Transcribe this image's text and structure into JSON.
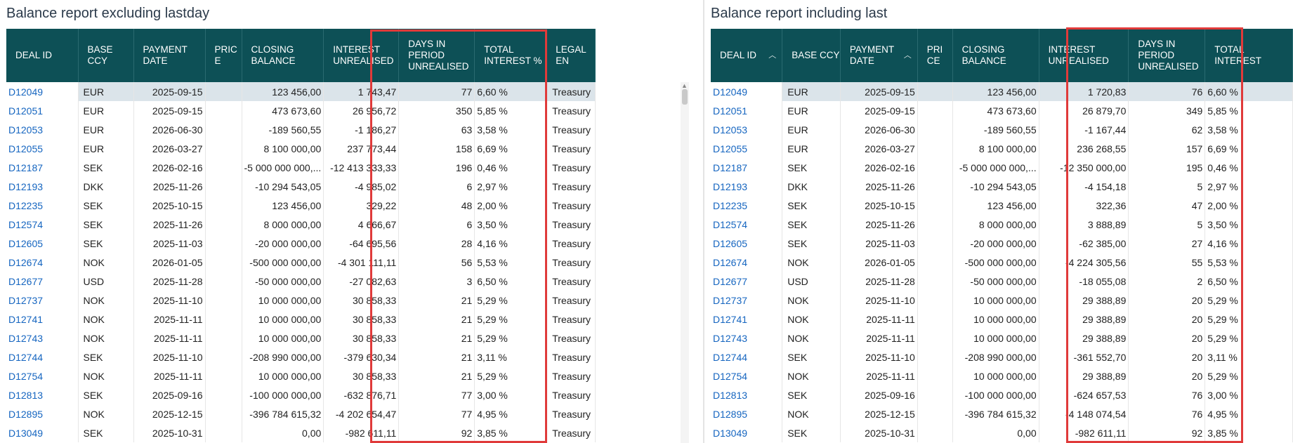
{
  "left_panel": {
    "title": "Balance report excluding lastday",
    "headers": [
      "DEAL ID",
      "BASE CCY",
      "PAYMENT DATE",
      "PRIC E",
      "CLOSING BALANCE",
      "INTEREST UNREALISED",
      "DAYS IN PERIOD UNREALISED",
      "TOTAL INTEREST %",
      "LEGAL EN"
    ],
    "rows": [
      [
        "D12049",
        "EUR",
        "2025-09-15",
        "",
        "123 456,00",
        "1 743,47",
        "77",
        "6,60 %",
        "Treasury"
      ],
      [
        "D12051",
        "EUR",
        "2025-09-15",
        "",
        "473 673,60",
        "26 956,72",
        "350",
        "5,85 %",
        "Treasury"
      ],
      [
        "D12053",
        "EUR",
        "2026-06-30",
        "",
        "-189 560,55",
        "-1 186,27",
        "63",
        "3,58 %",
        "Treasury"
      ],
      [
        "D12055",
        "EUR",
        "2026-03-27",
        "",
        "8 100 000,00",
        "237 773,44",
        "158",
        "6,69 %",
        "Treasury"
      ],
      [
        "D12187",
        "SEK",
        "2026-02-16",
        "",
        "-5 000 000 000,...",
        "-12 413 333,33",
        "196",
        "0,46 %",
        "Treasury"
      ],
      [
        "D12193",
        "DKK",
        "2025-11-26",
        "",
        "-10 294 543,05",
        "-4 985,02",
        "6",
        "2,97 %",
        "Treasury"
      ],
      [
        "D12235",
        "SEK",
        "2025-10-15",
        "",
        "123 456,00",
        "329,22",
        "48",
        "2,00 %",
        "Treasury"
      ],
      [
        "D12574",
        "SEK",
        "2025-11-26",
        "",
        "8 000 000,00",
        "4 666,67",
        "6",
        "3,50 %",
        "Treasury"
      ],
      [
        "D12605",
        "SEK",
        "2025-11-03",
        "",
        "-20 000 000,00",
        "-64 695,56",
        "28",
        "4,16 %",
        "Treasury"
      ],
      [
        "D12674",
        "NOK",
        "2026-01-05",
        "",
        "-500 000 000,00",
        "-4 301 111,11",
        "56",
        "5,53 %",
        "Treasury"
      ],
      [
        "D12677",
        "USD",
        "2025-11-28",
        "",
        "-50 000 000,00",
        "-27 082,63",
        "3",
        "6,50 %",
        "Treasury"
      ],
      [
        "D12737",
        "NOK",
        "2025-11-10",
        "",
        "10 000 000,00",
        "30 858,33",
        "21",
        "5,29 %",
        "Treasury"
      ],
      [
        "D12741",
        "NOK",
        "2025-11-11",
        "",
        "10 000 000,00",
        "30 858,33",
        "21",
        "5,29 %",
        "Treasury"
      ],
      [
        "D12743",
        "NOK",
        "2025-11-11",
        "",
        "10 000 000,00",
        "30 858,33",
        "21",
        "5,29 %",
        "Treasury"
      ],
      [
        "D12744",
        "SEK",
        "2025-11-10",
        "",
        "-208 990 000,00",
        "-379 630,34",
        "21",
        "3,11 %",
        "Treasury"
      ],
      [
        "D12754",
        "NOK",
        "2025-11-11",
        "",
        "10 000 000,00",
        "30 858,33",
        "21",
        "5,29 %",
        "Treasury"
      ],
      [
        "D12813",
        "SEK",
        "2025-09-16",
        "",
        "-100 000 000,00",
        "-632 876,71",
        "77",
        "3,00 %",
        "Treasury"
      ],
      [
        "D12895",
        "NOK",
        "2025-12-15",
        "",
        "-396 784 615,32",
        "-4 202 654,47",
        "77",
        "4,95 %",
        "Treasury"
      ],
      [
        "D13049",
        "SEK",
        "2025-10-31",
        "",
        "0,00",
        "-982 611,11",
        "92",
        "3,85 %",
        "Treasury"
      ]
    ]
  },
  "right_panel": {
    "title": "Balance report including last",
    "headers": [
      "DEAL ID",
      "BASE CCY",
      "PAYMENT DATE",
      "PRI CE",
      "CLOSING BALANCE",
      "INTEREST UNREALISED",
      "DAYS IN PERIOD UNREALISED",
      "TOTAL INTEREST"
    ],
    "rows": [
      [
        "D12049",
        "EUR",
        "2025-09-15",
        "",
        "123 456,00",
        "1 720,83",
        "76",
        "6,60 %"
      ],
      [
        "D12051",
        "EUR",
        "2025-09-15",
        "",
        "473 673,60",
        "26 879,70",
        "349",
        "5,85 %"
      ],
      [
        "D12053",
        "EUR",
        "2026-06-30",
        "",
        "-189 560,55",
        "-1 167,44",
        "62",
        "3,58 %"
      ],
      [
        "D12055",
        "EUR",
        "2026-03-27",
        "",
        "8 100 000,00",
        "236 268,55",
        "157",
        "6,69 %"
      ],
      [
        "D12187",
        "SEK",
        "2026-02-16",
        "",
        "-5 000 000 000,...",
        "-12 350 000,00",
        "195",
        "0,46 %"
      ],
      [
        "D12193",
        "DKK",
        "2025-11-26",
        "",
        "-10 294 543,05",
        "-4 154,18",
        "5",
        "2,97 %"
      ],
      [
        "D12235",
        "SEK",
        "2025-10-15",
        "",
        "123 456,00",
        "322,36",
        "47",
        "2,00 %"
      ],
      [
        "D12574",
        "SEK",
        "2025-11-26",
        "",
        "8 000 000,00",
        "3 888,89",
        "5",
        "3,50 %"
      ],
      [
        "D12605",
        "SEK",
        "2025-11-03",
        "",
        "-20 000 000,00",
        "-62 385,00",
        "27",
        "4,16 %"
      ],
      [
        "D12674",
        "NOK",
        "2026-01-05",
        "",
        "-500 000 000,00",
        "-4 224 305,56",
        "55",
        "5,53 %"
      ],
      [
        "D12677",
        "USD",
        "2025-11-28",
        "",
        "-50 000 000,00",
        "-18 055,08",
        "2",
        "6,50 %"
      ],
      [
        "D12737",
        "NOK",
        "2025-11-10",
        "",
        "10 000 000,00",
        "29 388,89",
        "20",
        "5,29 %"
      ],
      [
        "D12741",
        "NOK",
        "2025-11-11",
        "",
        "10 000 000,00",
        "29 388,89",
        "20",
        "5,29 %"
      ],
      [
        "D12743",
        "NOK",
        "2025-11-11",
        "",
        "10 000 000,00",
        "29 388,89",
        "20",
        "5,29 %"
      ],
      [
        "D12744",
        "SEK",
        "2025-11-10",
        "",
        "-208 990 000,00",
        "-361 552,70",
        "20",
        "3,11 %"
      ],
      [
        "D12754",
        "NOK",
        "2025-11-11",
        "",
        "10 000 000,00",
        "29 388,89",
        "20",
        "5,29 %"
      ],
      [
        "D12813",
        "SEK",
        "2025-09-16",
        "",
        "-100 000 000,00",
        "-624 657,53",
        "76",
        "3,00 %"
      ],
      [
        "D12895",
        "NOK",
        "2025-12-15",
        "",
        "-396 784 615,32",
        "-4 148 074,54",
        "76",
        "4,95 %"
      ],
      [
        "D13049",
        "SEK",
        "2025-10-31",
        "",
        "0,00",
        "-982 611,11",
        "92",
        "3,85 %"
      ]
    ]
  },
  "icons": {
    "sort": "chevron-up-icon",
    "scroll_up": "triangle-up-icon"
  },
  "colors": {
    "header_bg": "#0d5056",
    "link": "#1565c0",
    "highlight": "#e03a3a",
    "selected_row": "#dbe4ea"
  }
}
